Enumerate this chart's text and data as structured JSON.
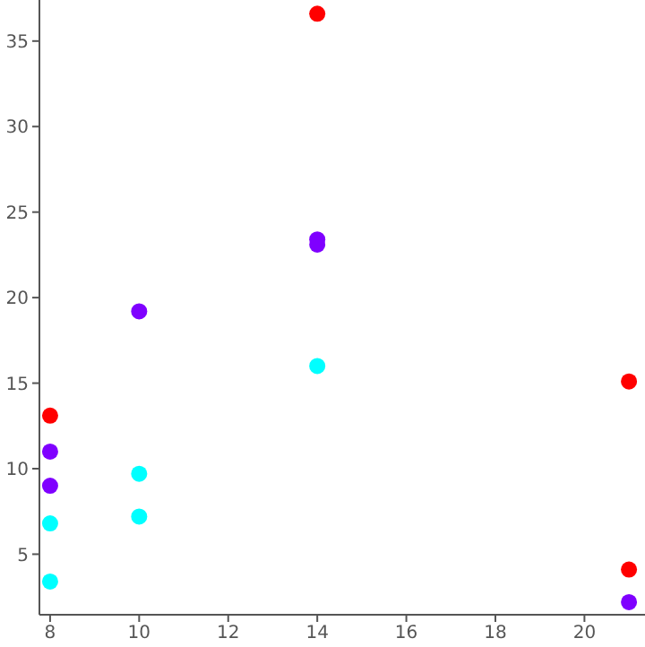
{
  "chart_data": {
    "type": "scatter",
    "xlim": [
      7.76,
      21.36
    ],
    "xticks": [
      8,
      10,
      12,
      14,
      16,
      18,
      20
    ],
    "ylim": [
      1.46,
      37.4
    ],
    "yticks": [
      5,
      10,
      15,
      20,
      25,
      30,
      35
    ],
    "grid": false,
    "marker": "circle",
    "series": [
      {
        "color": "#ff0000",
        "x": [
          14,
          8,
          21,
          21
        ],
        "values": [
          36.6,
          13.1,
          15.1,
          4.1
        ]
      },
      {
        "color": "#7f00ff",
        "x": [
          10,
          14,
          14,
          8,
          8,
          21
        ],
        "values": [
          19.2,
          23.4,
          23.1,
          11.0,
          9.0,
          2.2
        ]
      },
      {
        "color": "#00ffff",
        "x": [
          14,
          10,
          10,
          8,
          8
        ],
        "values": [
          16.0,
          9.7,
          7.2,
          6.8,
          3.4
        ]
      }
    ]
  }
}
